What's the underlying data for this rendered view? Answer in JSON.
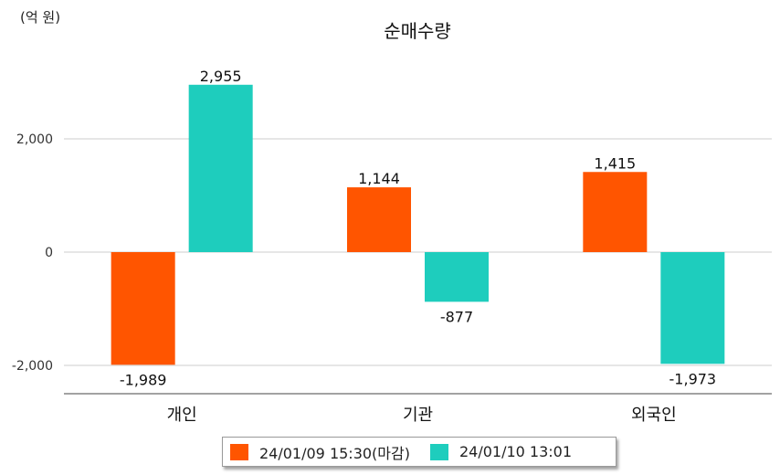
{
  "chart_data": {
    "type": "bar",
    "title": "순매수량",
    "unit_label": "(억 원)",
    "categories": [
      "개인",
      "기관",
      "외국인"
    ],
    "series": [
      {
        "name": "24/01/09 15:30(마감)",
        "color": "#FF5500",
        "values": [
          -1989,
          1144,
          1415
        ],
        "labels": [
          "-1,989",
          "1,144",
          "1,415"
        ]
      },
      {
        "name": "24/01/10 13:01",
        "color": "#1ECDBD",
        "values": [
          2955,
          -877,
          -1973
        ],
        "labels": [
          "2,955",
          "-877",
          "-1,973"
        ]
      }
    ],
    "yticks": [
      2000,
      0,
      -2000
    ],
    "ytick_labels": [
      "2,000",
      "0",
      "-2,000"
    ],
    "ylim": [
      -2500,
      3300
    ],
    "grid": true,
    "legend_position": "bottom"
  }
}
